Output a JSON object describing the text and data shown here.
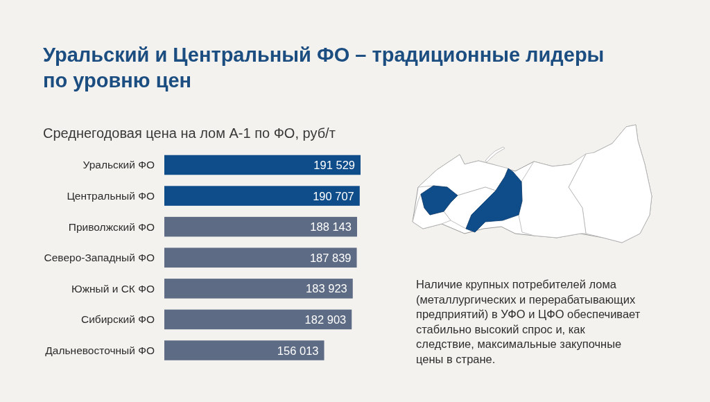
{
  "chart_data": {
    "type": "bar",
    "orientation": "horizontal",
    "title": "Уральский и Центральный ФО – традиционные лидеры по уровню цен",
    "subtitle": "Среднегодовая цена на лом А-1 по ФО, руб/т",
    "categories": [
      "Уральский ФО",
      "Центральный ФО",
      "Приволжский ФО",
      "Северо-Западный ФО",
      "Южный и СК ФО",
      "Сибирский ФО",
      "Дальневосточный ФО"
    ],
    "values": [
      191529,
      190707,
      188143,
      187839,
      183923,
      182903,
      156013
    ],
    "colors": [
      "#0f4c8a",
      "#0f4c8a",
      "#5d6b84",
      "#5d6b84",
      "#5d6b84",
      "#5d6b84",
      "#5d6b84"
    ],
    "data_labels": true,
    "annotations": [
      "Наличие крупных потребителей лома (металлургических и перерабатывающих предприятий) в УФО и ЦФО обеспечивает стабильно высокий спрос и, как следствие, максимальные закупочные цены в стране."
    ]
  }
}
